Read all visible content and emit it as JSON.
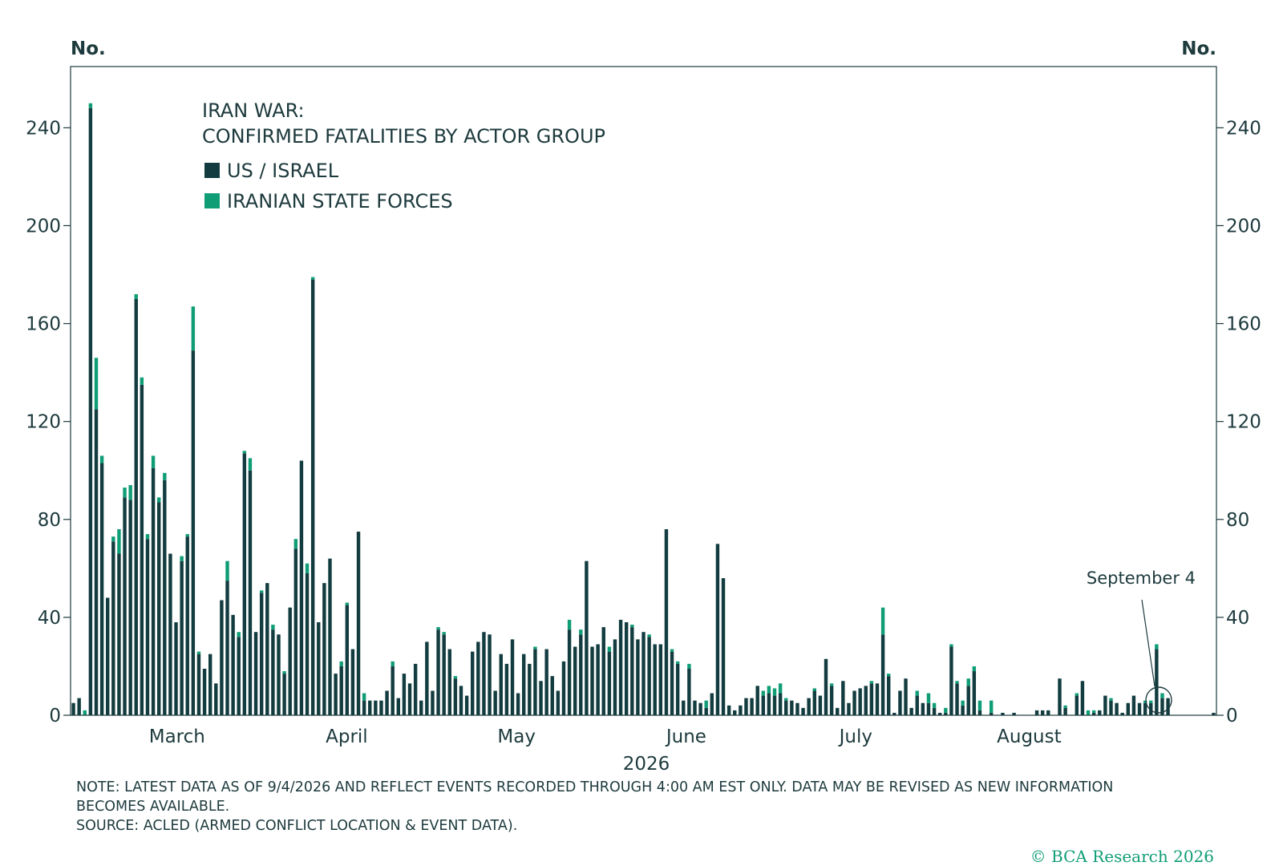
{
  "chart_data": {
    "type": "bar",
    "stacked": true,
    "title_lines": [
      "IRAN WAR:",
      "CONFIRMED FATALITIES BY ACTOR GROUP"
    ],
    "ylabel_left": "No.",
    "ylabel_right": "No.",
    "xlabel": "2026",
    "ylim": [
      0,
      265
    ],
    "yticks": [
      0,
      40,
      80,
      120,
      160,
      200,
      240
    ],
    "x_month_labels": [
      "March",
      "April",
      "May",
      "June",
      "July",
      "August"
    ],
    "legend": {
      "position": "top-left",
      "entries": [
        {
          "name": "US / ISRAEL",
          "color": "#123c3f"
        },
        {
          "name": "IRANIAN STATE FORCES",
          "color": "#0f9d76"
        }
      ]
    },
    "annotation": {
      "text": "September 4"
    },
    "series": [
      {
        "name": "US / ISRAEL",
        "color": "#123c3f",
        "values": [
          5,
          7,
          0,
          248,
          125,
          103,
          48,
          71,
          66,
          89,
          88,
          170,
          135,
          72,
          101,
          87,
          96,
          66,
          38,
          63,
          73,
          149,
          25,
          19,
          25,
          13,
          47,
          55,
          41,
          32,
          107,
          100,
          34,
          50,
          54,
          35,
          33,
          17,
          44,
          68,
          104,
          58,
          178,
          38,
          54,
          64,
          17,
          20,
          45,
          27,
          75,
          6,
          6,
          6,
          6,
          10,
          20,
          7,
          17,
          13,
          21,
          6,
          30,
          10,
          35,
          33,
          27,
          15,
          12,
          8,
          26,
          30,
          34,
          33,
          10,
          25,
          21,
          31,
          9,
          25,
          21,
          27,
          14,
          27,
          16,
          10,
          22,
          35,
          28,
          33,
          63,
          28,
          29,
          36,
          26,
          31,
          39,
          38,
          36,
          31,
          34,
          32,
          29,
          29,
          76,
          26,
          21,
          6,
          19,
          6,
          5,
          3,
          9,
          70,
          56,
          4,
          2,
          4,
          7,
          7,
          12,
          8,
          9,
          8,
          9,
          6,
          6,
          5,
          3,
          7,
          10,
          8,
          23,
          12,
          3,
          14,
          5,
          10,
          11,
          12,
          13,
          13,
          33,
          16,
          1,
          10,
          15,
          3,
          8,
          5,
          5,
          3,
          1,
          1,
          28,
          13,
          4,
          12,
          18,
          2,
          0,
          1,
          0,
          1,
          0,
          1,
          0,
          0,
          0,
          2,
          2,
          2,
          0,
          15,
          3,
          0,
          8,
          14,
          0,
          1,
          2,
          8,
          6,
          5,
          1,
          5,
          8,
          5,
          5,
          5,
          27,
          7,
          7,
          0,
          0,
          0,
          0,
          0,
          0,
          0,
          1
        ]
      },
      {
        "name": "IRANIAN STATE FORCES",
        "color": "#0f9d76",
        "values": [
          0,
          0,
          2,
          2,
          21,
          3,
          0,
          2,
          10,
          4,
          6,
          2,
          3,
          2,
          5,
          2,
          3,
          0,
          0,
          2,
          1,
          18,
          1,
          0,
          0,
          0,
          0,
          8,
          0,
          2,
          1,
          5,
          0,
          1,
          0,
          2,
          0,
          1,
          0,
          4,
          0,
          4,
          1,
          0,
          0,
          0,
          0,
          2,
          1,
          0,
          0,
          3,
          0,
          0,
          0,
          0,
          2,
          0,
          0,
          0,
          0,
          0,
          0,
          0,
          1,
          1,
          0,
          1,
          0,
          0,
          0,
          0,
          0,
          0,
          0,
          0,
          0,
          0,
          0,
          0,
          0,
          1,
          0,
          0,
          0,
          0,
          0,
          4,
          0,
          2,
          0,
          0,
          0,
          0,
          2,
          0,
          0,
          0,
          1,
          0,
          0,
          1,
          0,
          0,
          0,
          1,
          1,
          0,
          2,
          0,
          0,
          3,
          0,
          0,
          0,
          0,
          0,
          0,
          0,
          0,
          0,
          2,
          3,
          3,
          4,
          1,
          0,
          0,
          0,
          0,
          1,
          0,
          0,
          1,
          0,
          0,
          0,
          0,
          0,
          0,
          1,
          0,
          11,
          1,
          0,
          0,
          0,
          0,
          2,
          0,
          4,
          2,
          0,
          2,
          1,
          1,
          2,
          3,
          2,
          4,
          0,
          5,
          0,
          0,
          0,
          0,
          0,
          0,
          0,
          0,
          0,
          0,
          0,
          0,
          1,
          0,
          1,
          0,
          2,
          1,
          0,
          0,
          1,
          0,
          0,
          0,
          0,
          0,
          1,
          1,
          2,
          2,
          0,
          0,
          0,
          0,
          0,
          0,
          0,
          0,
          0
        ]
      }
    ]
  },
  "note_lines": [
    "NOTE: LATEST DATA AS OF 9/4/2026 AND REFLECT EVENTS RECORDED THROUGH 4:00 AM EST ONLY. DATA MAY BE REVISED AS NEW INFORMATION",
    "BECOMES AVAILABLE.",
    "SOURCE: ACLED (ARMED CONFLICT LOCATION & EVENT DATA)."
  ],
  "copyright": "© BCA Research 2026"
}
